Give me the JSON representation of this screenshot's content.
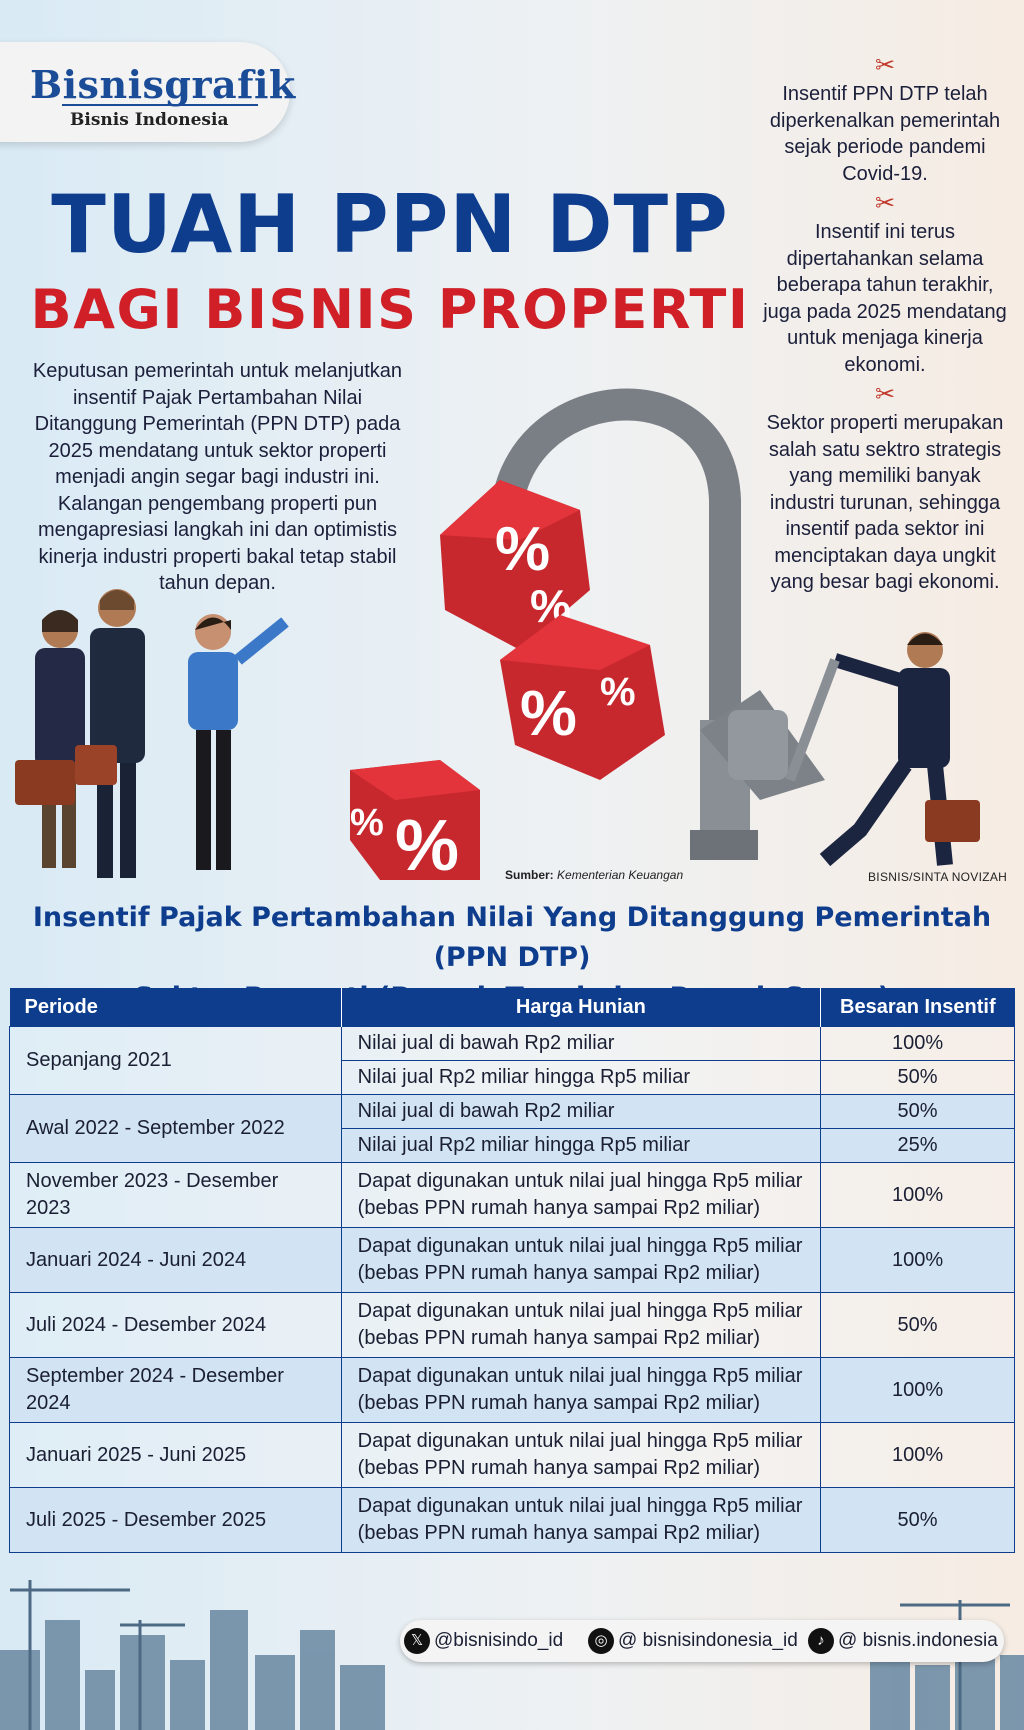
{
  "brand": {
    "name": "Bisnisgrafik",
    "sub": "Bisnis Indonesia"
  },
  "title": {
    "line1": "TUAH PPN DTP",
    "line2": "BAGI BISNIS PROPERTI"
  },
  "intro": "Keputusan pemerintah untuk melanjutkan insentif Pajak Pertambahan Nilai Ditanggung Pemerintah (PPN DTP) pada 2025 mendatang untuk sektor properti menjadi angin segar bagi industri ini. Kalangan pengembang properti pun mengapresiasi langkah ini dan optimistis kinerja industri properti bakal tetap stabil tahun depan.",
  "notes": [
    "Insentif PPN DTP telah diperkenalkan pemerintah sejak periode pandemi Covid-19.",
    "Insentif ini terus dipertahankan selama beberapa tahun terakhir, juga pada 2025 mendatang untuk menjaga kinerja ekonomi.",
    "Sektor properti merupakan salah satu sektro strategis yang memiliki banyak industri turunan, sehingga insentif pada sektor ini menciptakan daya ungkit yang besar bagi ekonomi."
  ],
  "illustration": {
    "percent_symbol": "%"
  },
  "source": {
    "label": "Sumber:",
    "value": "Kementerian Keuangan"
  },
  "credit": "BISNIS/SINTA NOVIZAH",
  "table": {
    "title_line1": "Insentif Pajak Pertambahan Nilai Yang Ditanggung Pemerintah (PPN DTP)",
    "title_line2": "Sektor Properti (Rumah Tapak dan Rumah Susun)",
    "headers": [
      "Periode",
      "Harga Hunian",
      "Besaran Insentif"
    ],
    "rows": [
      {
        "period": "Sepanjang 2021",
        "items": [
          {
            "price": "Nilai jual di bawah Rp2 miliar",
            "incentive": "100%"
          },
          {
            "price": "Nilai jual Rp2 miliar hingga Rp5 miliar",
            "incentive": "50%"
          }
        ]
      },
      {
        "period": "Awal 2022 - September 2022",
        "items": [
          {
            "price": "Nilai jual di bawah Rp2 miliar",
            "incentive": "50%"
          },
          {
            "price": "Nilai jual Rp2 miliar hingga Rp5 miliar",
            "incentive": "25%"
          }
        ]
      },
      {
        "period": "November 2023 - Desember 2023",
        "price_line1": "Dapat digunakan untuk nilai jual hingga Rp5 miliar",
        "price_line2": "(bebas PPN rumah hanya sampai Rp2 miliar)",
        "incentive": "100%"
      },
      {
        "period": "Januari 2024 - Juni 2024",
        "price_line1": "Dapat digunakan untuk nilai jual hingga Rp5 miliar",
        "price_line2": "(bebas PPN rumah hanya sampai Rp2 miliar)",
        "incentive": "100%"
      },
      {
        "period": "Juli 2024 - Desember 2024",
        "price_line1": "Dapat digunakan untuk nilai jual hingga Rp5 miliar",
        "price_line2": "(bebas PPN rumah hanya sampai Rp2 miliar)",
        "incentive": "50%"
      },
      {
        "period": "September 2024 - Desember 2024",
        "price_line1": "Dapat digunakan untuk nilai jual hingga Rp5 miliar",
        "price_line2": "(bebas PPN rumah hanya sampai Rp2 miliar)",
        "incentive": "100%"
      },
      {
        "period": "Januari 2025 - Juni 2025",
        "price_line1": "Dapat digunakan untuk nilai jual hingga Rp5 miliar",
        "price_line2": "(bebas PPN rumah hanya sampai Rp2 miliar)",
        "incentive": "100%"
      },
      {
        "period": "Juli 2025 - Desember 2025",
        "price_line1": "Dapat digunakan untuk nilai jual hingga Rp5 miliar",
        "price_line2": "(bebas PPN rumah hanya sampai Rp2 miliar)",
        "incentive": "50%"
      }
    ]
  },
  "social": {
    "x": "@bisnisindo_id",
    "instagram": "@ bisnisindonesia_id",
    "tiktok": "@ bisnis.indonesia"
  },
  "colors": {
    "navy": "#0e3d8e",
    "red": "#d01f27",
    "row_shade": "#d2e3f3"
  }
}
